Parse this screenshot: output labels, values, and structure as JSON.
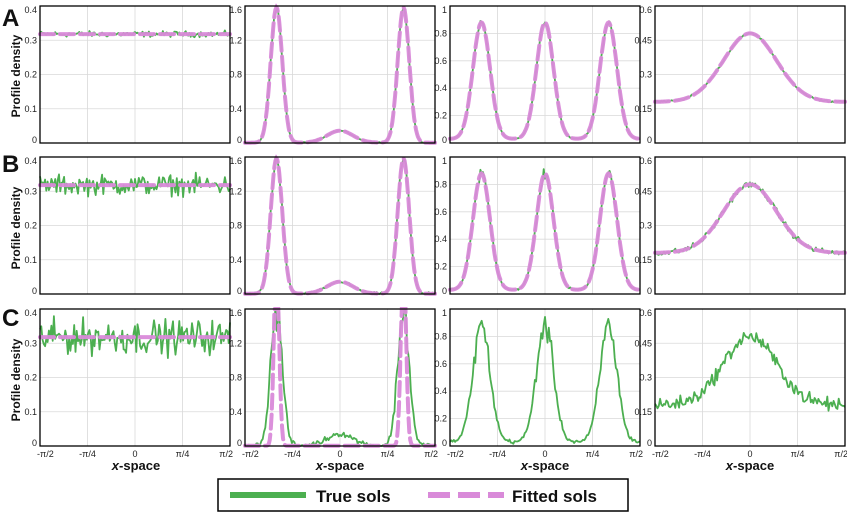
{
  "figure": {
    "row_letters": [
      "A",
      "B",
      "C"
    ],
    "ylabel": "Profile density",
    "xlabel_var": "x",
    "xlabel_rest": "-space",
    "legend": {
      "true_label": "True sols",
      "fitted_label": "Fitted sols"
    },
    "colors": {
      "true": "#4caf50",
      "fitted": "#d98ad9",
      "grid": "#d9d9d9",
      "axis": "#000000"
    }
  },
  "chart_data": {
    "type": "line",
    "layout": "3x4 grid",
    "xlabel": "x-space",
    "ylabel": "Profile density",
    "x_ticks": [
      "-π/2",
      "-π/4",
      "0",
      "π/4",
      "π/2"
    ],
    "xlim": [
      -1.5708,
      1.5708
    ],
    "legend_position": "bottom-center",
    "grid": true,
    "columns": [
      {
        "ylim": [
          0,
          0.4
        ],
        "y_ticks": [
          "0",
          "0.1",
          "0.2",
          "0.3",
          "0.4"
        ],
        "profile": "uniform",
        "level": 0.318
      },
      {
        "ylim": [
          0,
          1.6
        ],
        "y_ticks": [
          "0",
          "0.4",
          "0.8",
          "1.2",
          "1.6"
        ],
        "profile": "two-peak",
        "peaks": [
          -1.05,
          1.05
        ],
        "peak_height": 1.58,
        "center_bump": 0.14
      },
      {
        "ylim": [
          0,
          1.0
        ],
        "y_ticks": [
          "0",
          "0.2",
          "0.4",
          "0.6",
          "0.8",
          "1"
        ],
        "profile": "three-peak",
        "peaks": [
          -1.05,
          0,
          1.05
        ],
        "peak_height": 0.88,
        "baseline": 0.03
      },
      {
        "ylim": [
          0.0,
          0.6
        ],
        "y_ticks": [
          "0",
          "0.15",
          "0.3",
          "0.45",
          "0.6"
        ],
        "profile": "single-hump",
        "center": 0,
        "peak_height": 0.48,
        "baseline": 0.18
      }
    ],
    "rows": [
      {
        "label": "A",
        "noise_level": "low",
        "fitted_shown": [
          true,
          true,
          true,
          true
        ]
      },
      {
        "label": "B",
        "noise_level": "medium",
        "fitted_shown": [
          true,
          true,
          true,
          true
        ]
      },
      {
        "label": "C",
        "noise_level": "high",
        "fitted_shown": [
          true,
          true,
          false,
          false
        ]
      }
    ],
    "series": [
      {
        "name": "True sols"
      },
      {
        "name": "Fitted sols"
      }
    ]
  }
}
